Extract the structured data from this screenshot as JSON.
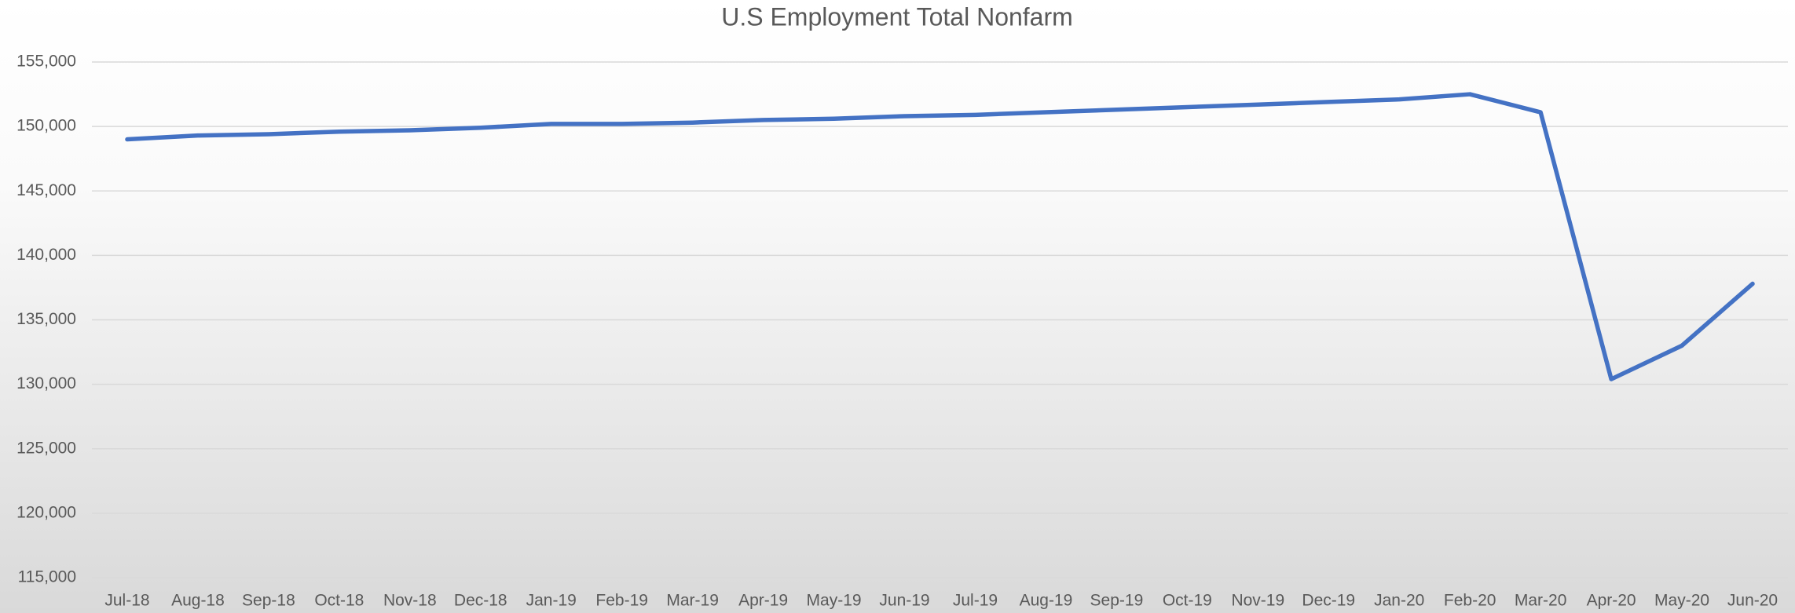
{
  "chart_data": {
    "type": "line",
    "title": "U.S Employment Total Nonfarm",
    "categories": [
      "Jul-18",
      "Aug-18",
      "Sep-18",
      "Oct-18",
      "Nov-18",
      "Dec-18",
      "Jan-19",
      "Feb-19",
      "Mar-19",
      "Apr-19",
      "May-19",
      "Jun-19",
      "Jul-19",
      "Aug-19",
      "Sep-19",
      "Oct-19",
      "Nov-19",
      "Dec-19",
      "Jan-20",
      "Feb-20",
      "Mar-20",
      "Apr-20",
      "May-20",
      "Jun-20"
    ],
    "series": [
      {
        "name": "Total Nonfarm",
        "color": "#4472c4",
        "values": [
          149000,
          149300,
          149400,
          149600,
          149700,
          149900,
          150200,
          150200,
          150300,
          150500,
          150600,
          150800,
          150900,
          151100,
          151300,
          151500,
          151700,
          151900,
          152100,
          152500,
          151100,
          130400,
          133000,
          137800
        ]
      }
    ],
    "ylim": [
      115000,
      155000
    ],
    "yticks": [
      {
        "value": 115000,
        "label": "115,000"
      },
      {
        "value": 120000,
        "label": "120,000"
      },
      {
        "value": 125000,
        "label": "125,000"
      },
      {
        "value": 130000,
        "label": "130,000"
      },
      {
        "value": 135000,
        "label": "135,000"
      },
      {
        "value": 140000,
        "label": "140,000"
      },
      {
        "value": 145000,
        "label": "145,000"
      },
      {
        "value": 150000,
        "label": "150,000"
      },
      {
        "value": 155000,
        "label": "155,000"
      }
    ],
    "grid": true
  }
}
